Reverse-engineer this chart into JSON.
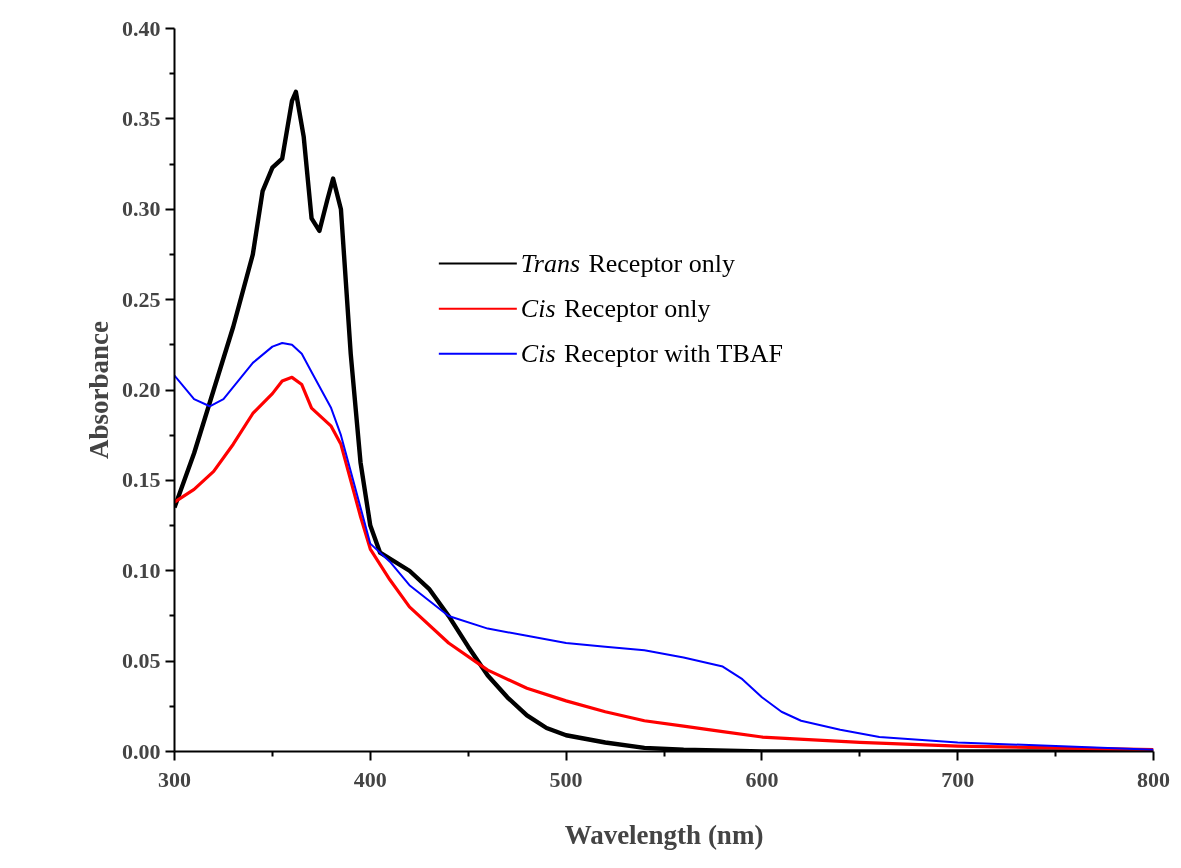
{
  "chart_data": {
    "type": "line",
    "xlabel": "Wavelength (nm)",
    "ylabel": "Absorbance",
    "xlim": [
      300,
      800
    ],
    "ylim": [
      0,
      0.4
    ],
    "xticks": [
      300,
      400,
      500,
      600,
      700,
      800
    ],
    "yticks": [
      {
        "value": 0,
        "label": "0.00"
      },
      {
        "value": 0.05,
        "label": "0.05"
      },
      {
        "value": 0.1,
        "label": "0.10"
      },
      {
        "value": 0.15,
        "label": "0.15"
      },
      {
        "value": 0.2,
        "label": "0.20"
      },
      {
        "value": 0.25,
        "label": "0.25"
      },
      {
        "value": 0.3,
        "label": "0.30"
      },
      {
        "value": 0.35,
        "label": "0.35"
      },
      {
        "value": 0.4,
        "label": "0.40"
      }
    ],
    "legend": "top",
    "grid": false,
    "line_style": "solid",
    "marker": "none",
    "series": [
      {
        "name": "Trans Receptor only",
        "color": "#000000",
        "x": [
          300,
          310,
          320,
          330,
          340,
          345,
          350,
          355,
          360,
          362,
          366,
          370,
          374,
          378,
          381,
          385,
          390,
          395,
          400,
          405,
          420,
          430,
          440,
          450,
          460,
          470,
          480,
          490,
          500,
          520,
          540,
          560,
          600,
          700,
          800
        ],
        "values": [
          0.135,
          0.165,
          0.2,
          0.235,
          0.275,
          0.31,
          0.323,
          0.328,
          0.36,
          0.365,
          0.34,
          0.295,
          0.288,
          0.305,
          0.317,
          0.3,
          0.22,
          0.16,
          0.125,
          0.11,
          0.1,
          0.09,
          0.075,
          0.058,
          0.042,
          0.03,
          0.02,
          0.013,
          0.009,
          0.005,
          0.002,
          0.001,
          0,
          0,
          0
        ]
      },
      {
        "name": "Cis Receptor only",
        "color": "#ff0000",
        "x": [
          300,
          310,
          320,
          330,
          340,
          350,
          355,
          360,
          365,
          370,
          380,
          385,
          390,
          395,
          400,
          410,
          420,
          440,
          460,
          480,
          500,
          520,
          540,
          560,
          580,
          600,
          650,
          700,
          750,
          800
        ],
        "values": [
          0.138,
          0.145,
          0.155,
          0.17,
          0.187,
          0.198,
          0.205,
          0.207,
          0.203,
          0.19,
          0.18,
          0.17,
          0.15,
          0.13,
          0.112,
          0.095,
          0.08,
          0.06,
          0.045,
          0.035,
          0.028,
          0.022,
          0.017,
          0.014,
          0.011,
          0.008,
          0.005,
          0.003,
          0.002,
          0.001
        ]
      },
      {
        "name": "Cis Receptor with TBAF",
        "color": "#0000ff",
        "x": [
          300,
          310,
          318,
          325,
          340,
          350,
          355,
          360,
          365,
          370,
          380,
          385,
          390,
          395,
          400,
          410,
          420,
          440,
          460,
          480,
          500,
          520,
          540,
          560,
          580,
          590,
          600,
          610,
          620,
          640,
          660,
          700,
          750,
          800
        ],
        "values": [
          0.208,
          0.195,
          0.191,
          0.195,
          0.215,
          0.224,
          0.226,
          0.225,
          0.22,
          0.21,
          0.19,
          0.175,
          0.155,
          0.135,
          0.115,
          0.105,
          0.092,
          0.075,
          0.068,
          0.064,
          0.06,
          0.058,
          0.056,
          0.052,
          0.047,
          0.04,
          0.03,
          0.022,
          0.017,
          0.012,
          0.008,
          0.005,
          0.003,
          0.001
        ]
      }
    ]
  }
}
